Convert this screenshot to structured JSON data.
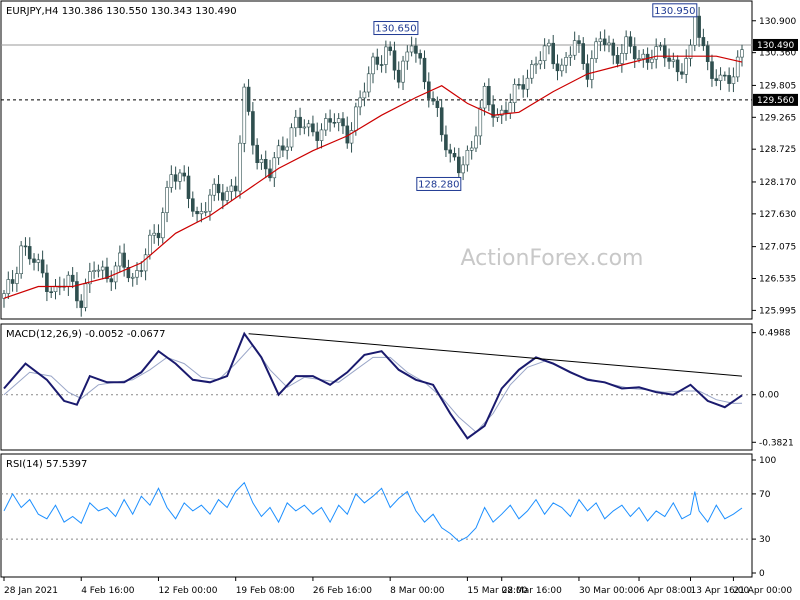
{
  "chart_data": {
    "type": "candlestick",
    "symbol_header": "EURJPY,H4  130.386 130.550 130.343 130.490",
    "watermark": "ActionForex.com",
    "price_panel": {
      "ylim": [
        125.9,
        131.15
      ],
      "y_ticks": [
        "130.900",
        "130.360",
        "129.805",
        "129.265",
        "128.725",
        "128.170",
        "127.630",
        "127.075",
        "126.535",
        "125.995"
      ],
      "y_tick_values": [
        130.9,
        130.36,
        129.805,
        129.265,
        128.725,
        128.17,
        127.63,
        127.075,
        126.535,
        125.995
      ],
      "current_price": "130.490",
      "support_level": "129.560",
      "resistance_line": 130.49,
      "annotations": [
        {
          "label": "130.650",
          "value": 130.65,
          "bar": 96
        },
        {
          "label": "128.280",
          "value": 128.28,
          "bar": 106
        },
        {
          "label": "130.950",
          "value": 130.95,
          "bar": 161
        }
      ],
      "close_path": [
        [
          0,
          126.2
        ],
        [
          2,
          126.5
        ],
        [
          4,
          127.1
        ],
        [
          6,
          126.9
        ],
        [
          9,
          126.6
        ],
        [
          12,
          126.3
        ],
        [
          15,
          126.5
        ],
        [
          18,
          126.2
        ],
        [
          21,
          126.7
        ],
        [
          24,
          126.6
        ],
        [
          27,
          126.8
        ],
        [
          30,
          126.5
        ],
        [
          33,
          127.0
        ],
        [
          36,
          127.3
        ],
        [
          39,
          128.4
        ],
        [
          42,
          128.1
        ],
        [
          45,
          127.6
        ],
        [
          48,
          127.9
        ],
        [
          51,
          128.0
        ],
        [
          54,
          128.1
        ],
        [
          56,
          129.6
        ],
        [
          59,
          128.6
        ],
        [
          62,
          128.3
        ],
        [
          65,
          128.8
        ],
        [
          68,
          129.2
        ],
        [
          71,
          129.0
        ],
        [
          74,
          129.1
        ],
        [
          77,
          129.2
        ],
        [
          80,
          129.0
        ],
        [
          83,
          129.5
        ],
        [
          86,
          130.2
        ],
        [
          89,
          130.4
        ],
        [
          92,
          129.9
        ],
        [
          95,
          130.65
        ],
        [
          98,
          129.8
        ],
        [
          101,
          129.4
        ],
        [
          104,
          128.5
        ],
        [
          106,
          128.4
        ],
        [
          109,
          128.8
        ],
        [
          112,
          129.6
        ],
        [
          115,
          129.3
        ],
        [
          118,
          129.5
        ],
        [
          121,
          129.9
        ],
        [
          124,
          130.2
        ],
        [
          127,
          130.4
        ],
        [
          130,
          130.1
        ],
        [
          133,
          130.5
        ],
        [
          136,
          130.1
        ],
        [
          139,
          130.6
        ],
        [
          142,
          130.3
        ],
        [
          145,
          130.5
        ],
        [
          148,
          130.2
        ],
        [
          151,
          130.4
        ],
        [
          154,
          130.3
        ],
        [
          157,
          130.1
        ],
        [
          160,
          130.3
        ],
        [
          161,
          130.95
        ],
        [
          164,
          130.2
        ],
        [
          167,
          129.8
        ],
        [
          170,
          130.0
        ],
        [
          172,
          130.49
        ]
      ],
      "ma_path": [
        [
          0,
          126.2
        ],
        [
          8,
          126.4
        ],
        [
          16,
          126.4
        ],
        [
          24,
          126.55
        ],
        [
          32,
          126.8
        ],
        [
          40,
          127.3
        ],
        [
          48,
          127.6
        ],
        [
          56,
          128.0
        ],
        [
          64,
          128.4
        ],
        [
          72,
          128.7
        ],
        [
          80,
          128.95
        ],
        [
          88,
          129.3
        ],
        [
          96,
          129.6
        ],
        [
          102,
          129.8
        ],
        [
          108,
          129.5
        ],
        [
          114,
          129.3
        ],
        [
          120,
          129.35
        ],
        [
          128,
          129.7
        ],
        [
          136,
          130.0
        ],
        [
          144,
          130.15
        ],
        [
          152,
          130.3
        ],
        [
          160,
          130.3
        ],
        [
          166,
          130.3
        ],
        [
          172,
          130.2
        ]
      ],
      "bars": 173
    },
    "macd_panel": {
      "label": "MACD(12,26,9) -0.0052 -0.0677",
      "ylim": [
        -0.42,
        0.52
      ],
      "y_ticks": [
        "0.4988",
        "0.00",
        "-0.3821"
      ],
      "y_tick_values": [
        0.4988,
        0.0,
        -0.3821
      ],
      "macd": [
        [
          0,
          0.05
        ],
        [
          5,
          0.25
        ],
        [
          10,
          0.12
        ],
        [
          14,
          -0.05
        ],
        [
          17,
          -0.08
        ],
        [
          20,
          0.15
        ],
        [
          24,
          0.1
        ],
        [
          28,
          0.1
        ],
        [
          32,
          0.18
        ],
        [
          36,
          0.35
        ],
        [
          40,
          0.25
        ],
        [
          44,
          0.12
        ],
        [
          48,
          0.1
        ],
        [
          52,
          0.15
        ],
        [
          56,
          0.49
        ],
        [
          60,
          0.3
        ],
        [
          64,
          0.0
        ],
        [
          68,
          0.15
        ],
        [
          72,
          0.15
        ],
        [
          76,
          0.08
        ],
        [
          80,
          0.18
        ],
        [
          84,
          0.32
        ],
        [
          88,
          0.35
        ],
        [
          92,
          0.2
        ],
        [
          96,
          0.12
        ],
        [
          100,
          0.08
        ],
        [
          104,
          -0.15
        ],
        [
          108,
          -0.35
        ],
        [
          112,
          -0.25
        ],
        [
          116,
          0.05
        ],
        [
          120,
          0.2
        ],
        [
          124,
          0.3
        ],
        [
          128,
          0.25
        ],
        [
          132,
          0.18
        ],
        [
          136,
          0.12
        ],
        [
          140,
          0.1
        ],
        [
          144,
          0.05
        ],
        [
          148,
          0.06
        ],
        [
          152,
          0.02
        ],
        [
          156,
          0.0
        ],
        [
          160,
          0.08
        ],
        [
          164,
          -0.05
        ],
        [
          168,
          -0.1
        ],
        [
          172,
          -0.005
        ]
      ],
      "signal": [
        [
          0,
          0.0
        ],
        [
          6,
          0.18
        ],
        [
          11,
          0.15
        ],
        [
          15,
          0.02
        ],
        [
          18,
          -0.03
        ],
        [
          22,
          0.08
        ],
        [
          26,
          0.1
        ],
        [
          30,
          0.12
        ],
        [
          34,
          0.2
        ],
        [
          38,
          0.3
        ],
        [
          42,
          0.25
        ],
        [
          46,
          0.14
        ],
        [
          50,
          0.12
        ],
        [
          54,
          0.25
        ],
        [
          58,
          0.4
        ],
        [
          62,
          0.2
        ],
        [
          66,
          0.06
        ],
        [
          70,
          0.14
        ],
        [
          74,
          0.12
        ],
        [
          78,
          0.1
        ],
        [
          82,
          0.2
        ],
        [
          86,
          0.3
        ],
        [
          90,
          0.3
        ],
        [
          94,
          0.18
        ],
        [
          98,
          0.1
        ],
        [
          102,
          -0.02
        ],
        [
          106,
          -0.18
        ],
        [
          110,
          -0.3
        ],
        [
          114,
          -0.15
        ],
        [
          118,
          0.08
        ],
        [
          122,
          0.22
        ],
        [
          126,
          0.27
        ],
        [
          130,
          0.22
        ],
        [
          134,
          0.15
        ],
        [
          138,
          0.11
        ],
        [
          142,
          0.08
        ],
        [
          146,
          0.05
        ],
        [
          150,
          0.04
        ],
        [
          154,
          0.02
        ],
        [
          158,
          0.03
        ],
        [
          162,
          0.03
        ],
        [
          166,
          -0.04
        ],
        [
          170,
          -0.07
        ],
        [
          172,
          -0.068
        ]
      ],
      "trendline": [
        [
          57,
          0.49
        ],
        [
          172,
          0.15
        ]
      ]
    },
    "rsi_panel": {
      "label": "RSI(14) 57.5397",
      "ylim": [
        0,
        100
      ],
      "y_ticks": [
        "100",
        "70",
        "30",
        "0"
      ],
      "y_tick_values": [
        100,
        70,
        30,
        0
      ],
      "levels": [
        70,
        30
      ],
      "rsi": [
        [
          0,
          55
        ],
        [
          2,
          70
        ],
        [
          4,
          58
        ],
        [
          6,
          65
        ],
        [
          8,
          52
        ],
        [
          10,
          48
        ],
        [
          12,
          60
        ],
        [
          14,
          45
        ],
        [
          16,
          50
        ],
        [
          18,
          44
        ],
        [
          20,
          62
        ],
        [
          22,
          55
        ],
        [
          24,
          58
        ],
        [
          26,
          50
        ],
        [
          28,
          65
        ],
        [
          30,
          52
        ],
        [
          32,
          68
        ],
        [
          34,
          60
        ],
        [
          36,
          75
        ],
        [
          38,
          58
        ],
        [
          40,
          48
        ],
        [
          42,
          62
        ],
        [
          44,
          55
        ],
        [
          46,
          60
        ],
        [
          48,
          52
        ],
        [
          50,
          65
        ],
        [
          52,
          58
        ],
        [
          54,
          72
        ],
        [
          56,
          80
        ],
        [
          58,
          62
        ],
        [
          60,
          50
        ],
        [
          62,
          58
        ],
        [
          64,
          45
        ],
        [
          66,
          62
        ],
        [
          68,
          55
        ],
        [
          70,
          60
        ],
        [
          72,
          52
        ],
        [
          74,
          58
        ],
        [
          76,
          45
        ],
        [
          78,
          60
        ],
        [
          80,
          52
        ],
        [
          82,
          70
        ],
        [
          84,
          62
        ],
        [
          86,
          68
        ],
        [
          88,
          75
        ],
        [
          90,
          58
        ],
        [
          92,
          66
        ],
        [
          94,
          72
        ],
        [
          96,
          55
        ],
        [
          98,
          45
        ],
        [
          100,
          52
        ],
        [
          102,
          40
        ],
        [
          104,
          35
        ],
        [
          106,
          28
        ],
        [
          108,
          32
        ],
        [
          110,
          40
        ],
        [
          112,
          58
        ],
        [
          114,
          45
        ],
        [
          116,
          52
        ],
        [
          118,
          60
        ],
        [
          120,
          48
        ],
        [
          122,
          55
        ],
        [
          124,
          65
        ],
        [
          126,
          52
        ],
        [
          128,
          62
        ],
        [
          130,
          58
        ],
        [
          132,
          50
        ],
        [
          134,
          65
        ],
        [
          136,
          55
        ],
        [
          138,
          62
        ],
        [
          140,
          48
        ],
        [
          142,
          55
        ],
        [
          144,
          60
        ],
        [
          146,
          50
        ],
        [
          148,
          58
        ],
        [
          150,
          46
        ],
        [
          152,
          55
        ],
        [
          154,
          50
        ],
        [
          156,
          62
        ],
        [
          158,
          48
        ],
        [
          160,
          52
        ],
        [
          161,
          72
        ],
        [
          162,
          55
        ],
        [
          164,
          45
        ],
        [
          166,
          60
        ],
        [
          168,
          48
        ],
        [
          170,
          52
        ],
        [
          172,
          57.5
        ]
      ]
    },
    "x_ticks": [
      {
        "label": "28 Jan 2021",
        "bar": 0
      },
      {
        "label": "4 Feb 16:00",
        "bar": 18
      },
      {
        "label": "12 Feb 00:00",
        "bar": 36
      },
      {
        "label": "19 Feb 08:00",
        "bar": 54
      },
      {
        "label": "26 Feb 16:00",
        "bar": 72
      },
      {
        "label": "8 Mar 00:00",
        "bar": 90
      },
      {
        "label": "15 Mar 08:00",
        "bar": 108
      },
      {
        "label": "22 Mar 16:00",
        "bar": 116
      },
      {
        "label": "30 Mar 00:00",
        "bar": 134
      },
      {
        "label": "6 Apr 08:00",
        "bar": 148
      },
      {
        "label": "13 Apr 16:00",
        "bar": 160
      },
      {
        "label": "21 Apr 00:00",
        "bar": 170
      }
    ]
  }
}
